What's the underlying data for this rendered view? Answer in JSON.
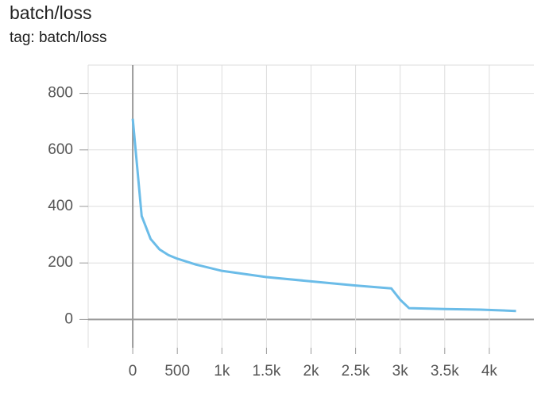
{
  "chart_data": {
    "type": "line",
    "title": "batch/loss",
    "subtitle": "tag: batch/loss",
    "x": [
      0,
      100,
      200,
      300,
      400,
      500,
      700,
      1000,
      1500,
      2000,
      2500,
      2900,
      3000,
      3100,
      3500,
      3900,
      4300
    ],
    "series": [
      {
        "name": "batch/loss",
        "color": "#6bbce8",
        "values": [
          710,
          366,
          285,
          248,
          228,
          215,
          195,
          172,
          150,
          135,
          120,
          110,
          70,
          40,
          37,
          35,
          30
        ]
      }
    ],
    "xlim": [
      -500,
      4500
    ],
    "xticks": [
      0,
      500,
      {
        "value": 1000,
        "label": "1k"
      },
      {
        "value": 1500,
        "label": "1.5k"
      },
      {
        "value": 2000,
        "label": "2k"
      },
      {
        "value": 2500,
        "label": "2.5k"
      },
      {
        "value": 3000,
        "label": "3k"
      },
      {
        "value": 3500,
        "label": "3.5k"
      },
      {
        "value": 4000,
        "label": "4k"
      }
    ],
    "ylim": [
      -100,
      900
    ],
    "yticks": [
      0,
      200,
      400,
      600,
      800
    ],
    "grid": true
  }
}
